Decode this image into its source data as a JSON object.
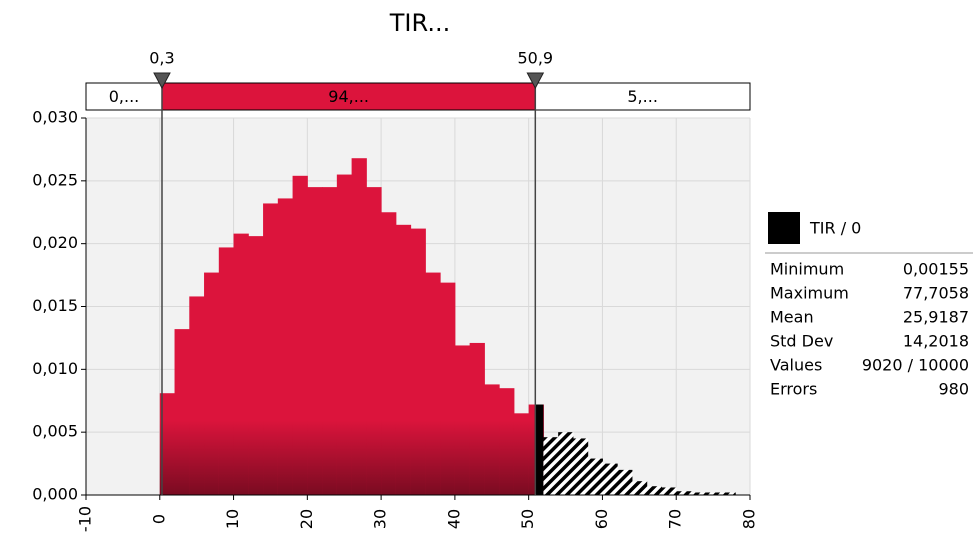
{
  "chart_data": {
    "type": "histogram",
    "title": "TIR...",
    "bins": [
      0,
      2,
      4,
      6,
      8,
      10,
      12,
      14,
      16,
      18,
      20,
      22,
      24,
      26,
      28,
      30,
      32,
      34,
      36,
      38,
      40,
      42,
      44,
      46,
      48,
      50,
      52,
      54,
      56,
      58,
      60,
      62,
      64,
      66,
      68,
      70,
      72,
      74,
      76,
      78
    ],
    "values": [
      0.0081,
      0.0132,
      0.0158,
      0.0177,
      0.0197,
      0.0208,
      0.0206,
      0.0232,
      0.0236,
      0.0254,
      0.0245,
      0.0245,
      0.0255,
      0.0268,
      0.0245,
      0.0225,
      0.0215,
      0.0212,
      0.0177,
      0.0169,
      0.0119,
      0.0121,
      0.0088,
      0.0085,
      0.0065,
      0.0072,
      0.0046,
      0.005,
      0.0045,
      0.0029,
      0.0025,
      0.002,
      0.0011,
      0.0007,
      0.0006,
      0.0003,
      0.0002,
      0.0002,
      0.0002
    ],
    "color": "#dc143c",
    "tail_color": "#000000",
    "xlim": [
      -10,
      80
    ],
    "xticks": [
      -10,
      0,
      10,
      20,
      30,
      40,
      50,
      60,
      70,
      80
    ],
    "ylim": [
      0,
      0.03
    ],
    "yticks": [
      {
        "value": 0,
        "label": "0,000"
      },
      {
        "value": 0.005,
        "label": "0,005"
      },
      {
        "value": 0.01,
        "label": "0,010"
      },
      {
        "value": 0.015,
        "label": "0,015"
      },
      {
        "value": 0.02,
        "label": "0,020"
      },
      {
        "value": 0.025,
        "label": "0,025"
      },
      {
        "value": 0.03,
        "label": "0,030"
      }
    ],
    "grid": true,
    "delimiters": [
      {
        "value": 0.3,
        "label": "0,3"
      },
      {
        "value": 50.9,
        "label": "50,9"
      }
    ],
    "bands": [
      "0,...",
      "94,...",
      "5,..."
    ],
    "legend": {
      "name": "TIR / 0",
      "color": "#000000"
    },
    "stats": [
      [
        "Minimum",
        "0,00155"
      ],
      [
        "Maximum",
        "77,7058"
      ],
      [
        "Mean",
        "25,9187"
      ],
      [
        "Std Dev",
        "14,2018"
      ],
      [
        "Values",
        "9020 / 10000"
      ],
      [
        "Errors",
        "980"
      ]
    ]
  }
}
